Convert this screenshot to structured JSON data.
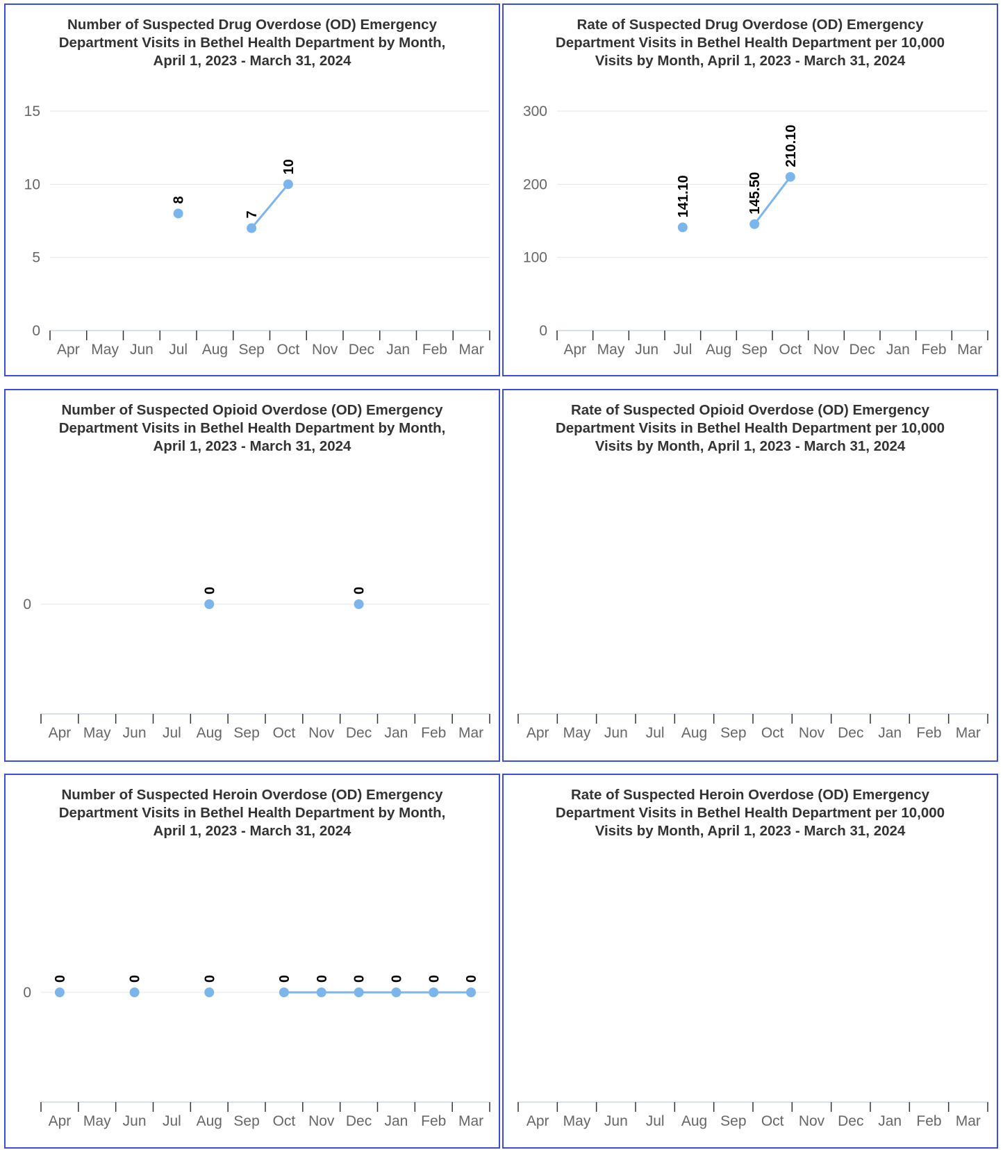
{
  "colors": {
    "series": "#7cb5ec",
    "grid": "#e6e6e6",
    "axis": "#ccd6eb",
    "border": "#3a4fd8",
    "title": "#333333",
    "ticks": "#666666"
  },
  "chart_data": [
    {
      "type": "line",
      "title": [
        "Number of Suspected Drug Overdose (OD) Emergency",
        "Department Visits in Bethel Health Department by Month,",
        "April 1, 2023 - March 31, 2024"
      ],
      "categories": [
        "Apr",
        "May",
        "Jun",
        "Jul",
        "Aug",
        "Sep",
        "Oct",
        "Nov",
        "Dec",
        "Jan",
        "Feb",
        "Mar"
      ],
      "series": [
        {
          "values": [
            null,
            null,
            null,
            8,
            null,
            7,
            10,
            null,
            null,
            null,
            null,
            null
          ]
        }
      ],
      "data_labels": [
        "",
        "",
        "",
        "8",
        "",
        "7",
        "10",
        "",
        "",
        "",
        "",
        ""
      ],
      "yticks": [
        0,
        5,
        10,
        15
      ],
      "ylim": [
        0,
        15
      ],
      "grid": true
    },
    {
      "type": "line",
      "title": [
        "Rate of Suspected Drug Overdose (OD) Emergency",
        "Department Visits in Bethel Health Department per 10,000",
        "Visits by Month, April 1, 2023 - March 31, 2024"
      ],
      "categories": [
        "Apr",
        "May",
        "Jun",
        "Jul",
        "Aug",
        "Sep",
        "Oct",
        "Nov",
        "Dec",
        "Jan",
        "Feb",
        "Mar"
      ],
      "series": [
        {
          "values": [
            null,
            null,
            null,
            141.1,
            null,
            145.5,
            210.1,
            null,
            null,
            null,
            null,
            null
          ]
        }
      ],
      "data_labels": [
        "",
        "",
        "",
        "141.10",
        "",
        "145.50",
        "210.10",
        "",
        "",
        "",
        "",
        ""
      ],
      "yticks": [
        0,
        100,
        200,
        300
      ],
      "ylim": [
        0,
        300
      ],
      "grid": true
    },
    {
      "type": "line",
      "title": [
        "Number of Suspected Opioid Overdose (OD) Emergency",
        "Department Visits in Bethel Health Department by Month,",
        "April 1, 2023 - March 31, 2024"
      ],
      "categories": [
        "Apr",
        "May",
        "Jun",
        "Jul",
        "Aug",
        "Sep",
        "Oct",
        "Nov",
        "Dec",
        "Jan",
        "Feb",
        "Mar"
      ],
      "series": [
        {
          "values": [
            null,
            null,
            null,
            null,
            0,
            null,
            null,
            null,
            0,
            null,
            null,
            null
          ]
        }
      ],
      "data_labels": [
        "",
        "",
        "",
        "",
        "0",
        "",
        "",
        "",
        "0",
        "",
        "",
        ""
      ],
      "yticks": [
        0
      ],
      "ylim": [
        -1,
        1
      ],
      "grid": true
    },
    {
      "type": "line",
      "title": [
        "Rate of Suspected Opioid Overdose (OD) Emergency",
        "Department Visits in Bethel Health Department per 10,000",
        "Visits by Month, April 1, 2023 - March 31, 2024"
      ],
      "categories": [
        "Apr",
        "May",
        "Jun",
        "Jul",
        "Aug",
        "Sep",
        "Oct",
        "Nov",
        "Dec",
        "Jan",
        "Feb",
        "Mar"
      ],
      "series": [
        {
          "values": [
            null,
            null,
            null,
            null,
            null,
            null,
            null,
            null,
            null,
            null,
            null,
            null
          ]
        }
      ],
      "data_labels": [
        "",
        "",
        "",
        "",
        "",
        "",
        "",
        "",
        "",
        "",
        "",
        ""
      ],
      "yticks": [],
      "ylim": [
        -1,
        1
      ],
      "grid": false
    },
    {
      "type": "line",
      "title": [
        "Number of Suspected Heroin Overdose (OD) Emergency",
        "Department Visits in Bethel Health Department by Month,",
        "April 1, 2023 - March 31, 2024"
      ],
      "categories": [
        "Apr",
        "May",
        "Jun",
        "Jul",
        "Aug",
        "Sep",
        "Oct",
        "Nov",
        "Dec",
        "Jan",
        "Feb",
        "Mar"
      ],
      "series": [
        {
          "values": [
            0,
            null,
            0,
            null,
            0,
            null,
            0,
            0,
            0,
            0,
            0,
            0
          ]
        }
      ],
      "data_labels": [
        "0",
        "",
        "0",
        "",
        "0",
        "",
        "0",
        "0",
        "0",
        "0",
        "0",
        "0"
      ],
      "yticks": [
        0
      ],
      "ylim": [
        -1,
        1
      ],
      "grid": true
    },
    {
      "type": "line",
      "title": [
        "Rate of Suspected Heroin Overdose (OD) Emergency",
        "Department Visits in Bethel Health Department per 10,000",
        "Visits by Month, April 1, 2023 - March 31, 2024"
      ],
      "categories": [
        "Apr",
        "May",
        "Jun",
        "Jul",
        "Aug",
        "Sep",
        "Oct",
        "Nov",
        "Dec",
        "Jan",
        "Feb",
        "Mar"
      ],
      "series": [
        {
          "values": [
            null,
            null,
            null,
            null,
            null,
            null,
            null,
            null,
            null,
            null,
            null,
            null
          ]
        }
      ],
      "data_labels": [
        "",
        "",
        "",
        "",
        "",
        "",
        "",
        "",
        "",
        "",
        "",
        ""
      ],
      "yticks": [],
      "ylim": [
        -1,
        1
      ],
      "grid": false
    }
  ]
}
